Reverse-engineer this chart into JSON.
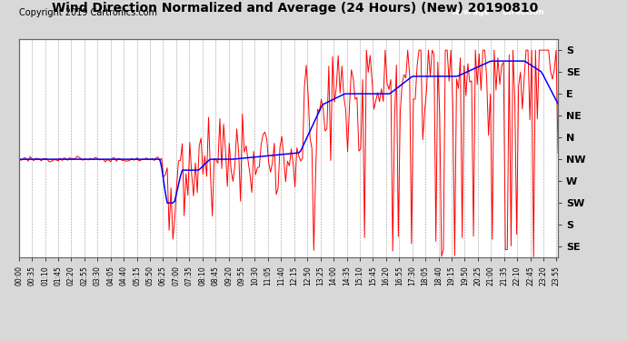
{
  "title": "Wind Direction Normalized and Average (24 Hours) (New) 20190810",
  "copyright": "Copyright 2019 Cartronics.com",
  "background_color": "#d8d8d8",
  "plot_bg_color": "#ffffff",
  "grid_color": "#999999",
  "ytick_labels_top_to_bottom": [
    "S",
    "SE",
    "E",
    "NE",
    "N",
    "NW",
    "W",
    "SW",
    "S",
    "SE"
  ],
  "avg_color": "#0000ff",
  "dir_color": "#ff0000",
  "title_fontsize": 10,
  "copyright_fontsize": 7,
  "tick_interval_minutes": 35
}
